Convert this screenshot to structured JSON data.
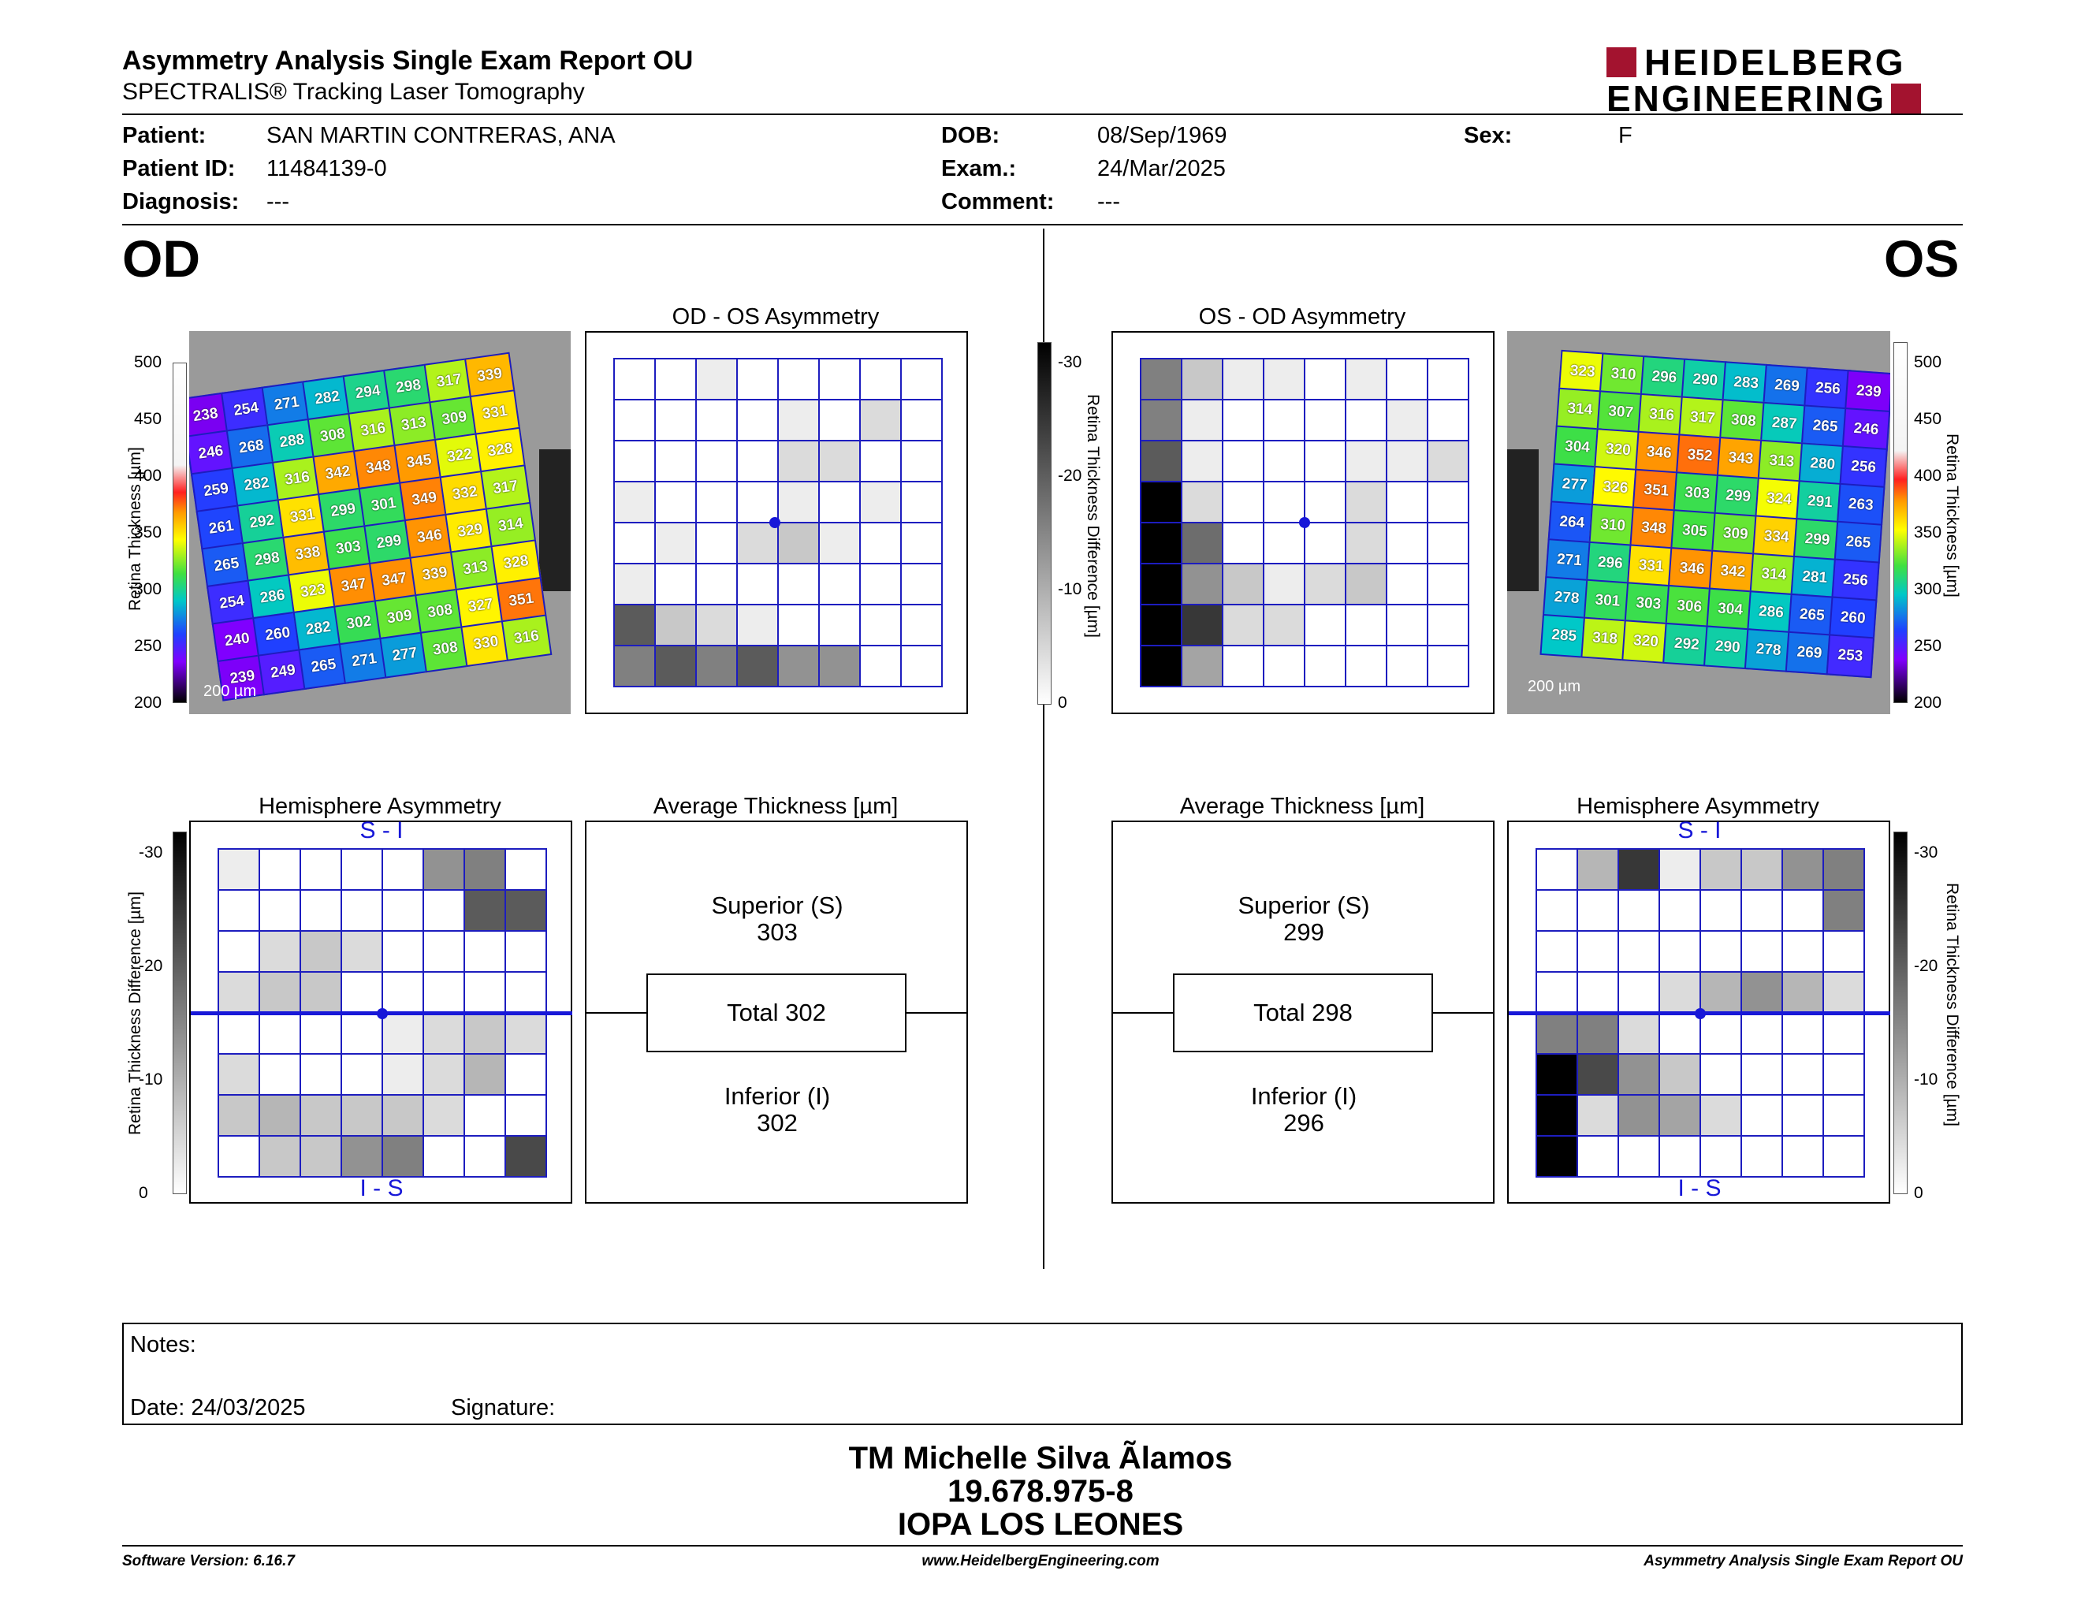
{
  "header": {
    "title": "Asymmetry Analysis Single Exam Report OU",
    "subtitle": "SPECTRALIS® Tracking Laser Tomography",
    "logo_line1": "HEIDELBERG",
    "logo_line2": "ENGINEERING"
  },
  "patient": {
    "patient_label": "Patient:",
    "patient": "SAN MARTIN CONTRERAS, ANA",
    "id_label": "Patient ID:",
    "id": "11484139-0",
    "diagnosis_label": "Diagnosis:",
    "diagnosis": "---",
    "dob_label": "DOB:",
    "dob": "08/Sep/1969",
    "exam_label": "Exam.:",
    "exam": "24/Mar/2025",
    "comment_label": "Comment:",
    "comment": "---",
    "sex_label": "Sex:",
    "sex": "F"
  },
  "eyes": {
    "od": "OD",
    "os": "OS"
  },
  "od": {
    "asym_title": "OD - OS Asymmetry",
    "hemi_title": "Hemisphere Asymmetry",
    "avg_title": "Average Thickness [µm]",
    "superior_label": "Superior (S)",
    "superior": "303",
    "total": "Total 302",
    "inferior_label": "Inferior (I)",
    "inferior": "302",
    "hemi_top": "S - I",
    "hemi_bottom": "I - S",
    "scalebar": "200 µm",
    "thickness": [
      [
        238,
        254,
        271,
        282,
        294,
        298,
        317,
        339
      ],
      [
        246,
        268,
        288,
        308,
        316,
        313,
        309,
        331
      ],
      [
        259,
        282,
        316,
        342,
        348,
        345,
        322,
        328
      ],
      [
        261,
        292,
        331,
        299,
        301,
        349,
        332,
        317
      ],
      [
        265,
        298,
        338,
        303,
        299,
        346,
        329,
        314
      ],
      [
        254,
        286,
        323,
        347,
        347,
        339,
        313,
        328
      ],
      [
        240,
        260,
        282,
        302,
        309,
        308,
        327,
        351
      ],
      [
        239,
        249,
        265,
        271,
        277,
        308,
        330,
        316
      ]
    ],
    "asym_gray": [
      [
        0,
        0,
        1,
        0,
        0,
        0,
        0,
        0
      ],
      [
        0,
        0,
        0,
        0,
        1,
        0,
        2,
        0
      ],
      [
        0,
        0,
        0,
        0,
        2,
        2,
        0,
        0
      ],
      [
        1,
        0,
        0,
        0,
        1,
        0,
        1,
        0
      ],
      [
        0,
        1,
        0,
        2,
        3,
        1,
        0,
        0
      ],
      [
        1,
        0,
        0,
        0,
        0,
        0,
        0,
        0
      ],
      [
        9,
        3,
        2,
        1,
        0,
        0,
        0,
        0
      ],
      [
        7,
        9,
        7,
        9,
        6,
        6,
        0,
        0
      ]
    ],
    "hemi_gray": [
      [
        1,
        0,
        0,
        0,
        0,
        6,
        7,
        0
      ],
      [
        0,
        0,
        0,
        0,
        0,
        0,
        9,
        9
      ],
      [
        0,
        2,
        3,
        2,
        0,
        0,
        0,
        0
      ],
      [
        2,
        3,
        3,
        0,
        0,
        0,
        0,
        0
      ],
      [
        0,
        0,
        0,
        0,
        1,
        2,
        3,
        2
      ],
      [
        2,
        0,
        0,
        0,
        1,
        2,
        4,
        0
      ],
      [
        3,
        4,
        3,
        3,
        3,
        2,
        0,
        0
      ],
      [
        0,
        3,
        3,
        6,
        7,
        0,
        0,
        10
      ]
    ]
  },
  "os": {
    "asym_title": "OS - OD Asymmetry",
    "hemi_title": "Hemisphere Asymmetry",
    "avg_title": "Average Thickness [µm]",
    "superior_label": "Superior (S)",
    "superior": "299",
    "total": "Total 298",
    "inferior_label": "Inferior (I)",
    "inferior": "296",
    "hemi_top": "S - I",
    "hemi_bottom": "I - S",
    "scalebar": "200 µm",
    "thickness": [
      [
        323,
        310,
        296,
        290,
        283,
        269,
        256,
        239
      ],
      [
        314,
        307,
        316,
        317,
        308,
        287,
        265,
        246
      ],
      [
        304,
        320,
        346,
        352,
        343,
        313,
        280,
        256
      ],
      [
        277,
        326,
        351,
        303,
        299,
        324,
        291,
        263
      ],
      [
        264,
        310,
        348,
        305,
        309,
        334,
        299,
        265
      ],
      [
        271,
        296,
        331,
        346,
        342,
        314,
        281,
        256
      ],
      [
        278,
        301,
        303,
        306,
        304,
        286,
        265,
        260
      ],
      [
        285,
        318,
        320,
        292,
        290,
        278,
        269,
        253
      ]
    ],
    "asym_gray": [
      [
        7,
        3,
        1,
        1,
        0,
        1,
        0,
        0
      ],
      [
        7,
        1,
        0,
        0,
        0,
        0,
        1,
        0
      ],
      [
        9,
        1,
        0,
        0,
        0,
        1,
        1,
        2
      ],
      [
        14,
        2,
        0,
        0,
        0,
        2,
        0,
        0
      ],
      [
        14,
        8,
        0,
        0,
        0,
        2,
        0,
        0
      ],
      [
        14,
        6,
        3,
        1,
        2,
        3,
        0,
        0
      ],
      [
        14,
        11,
        2,
        2,
        0,
        0,
        0,
        0
      ],
      [
        14,
        5,
        0,
        0,
        0,
        0,
        0,
        0
      ]
    ],
    "hemi_gray": [
      [
        0,
        4,
        11,
        1,
        3,
        3,
        6,
        7
      ],
      [
        0,
        0,
        0,
        0,
        0,
        0,
        0,
        7
      ],
      [
        0,
        0,
        0,
        0,
        0,
        0,
        0,
        0
      ],
      [
        0,
        0,
        0,
        2,
        4,
        6,
        4,
        2
      ],
      [
        7,
        7,
        2,
        0,
        0,
        0,
        0,
        0
      ],
      [
        14,
        10,
        6,
        3,
        0,
        0,
        0,
        0
      ],
      [
        14,
        2,
        6,
        5,
        2,
        0,
        0,
        0
      ],
      [
        14,
        0,
        0,
        0,
        0,
        0,
        0,
        0
      ]
    ]
  },
  "scales": {
    "thickness_label": "Retina Thickness [µm]",
    "thickness_ticks": [
      "500",
      "450",
      "400",
      "350",
      "300",
      "250",
      "200"
    ],
    "diff_label": "Retina Thickness Difference [µm]",
    "diff_ticks": [
      "-30",
      "-20",
      "-10",
      "0"
    ]
  },
  "notes": {
    "notes_label": "Notes:",
    "date_label": "Date: 24/03/2025",
    "signature_label": "Signature:"
  },
  "signature_block": {
    "line1": "TM Michelle Silva Ãlamos",
    "line2": "19.678.975-8",
    "line3": "IOPA LOS LEONES"
  },
  "footer": {
    "software": "Software Version: 6.16.7",
    "website": "www.HeidelbergEngineering.com",
    "report": "Asymmetry Analysis Single Exam Report OU"
  }
}
